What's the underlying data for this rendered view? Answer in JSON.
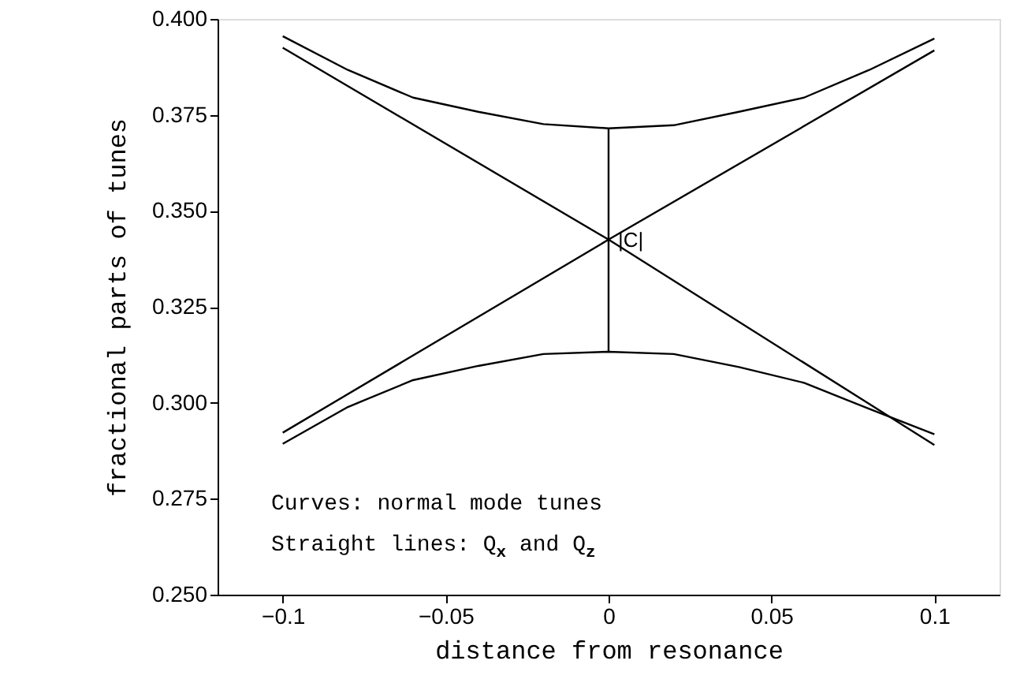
{
  "chart_data": {
    "type": "line",
    "xlabel": "distance from resonance",
    "ylabel": "fractional parts of tunes",
    "xlim": [
      -0.12,
      0.12
    ],
    "xticks": [
      -0.1,
      -0.05,
      0,
      0.05,
      0.1
    ],
    "ylim": [
      0.25,
      0.4
    ],
    "yticks": [
      {
        "value": 0.25,
        "label": "0.250"
      },
      {
        "value": 0.275,
        "label": "0.275"
      },
      {
        "value": 0.3,
        "label": "0.300"
      },
      {
        "value": 0.325,
        "label": "0.325"
      },
      {
        "value": 0.35,
        "label": "0.350"
      },
      {
        "value": 0.375,
        "label": "0.375"
      },
      {
        "value": 0.4,
        "label": "0.400"
      }
    ],
    "grid": false,
    "marker": "none",
    "line_style": "solid",
    "series": [
      {
        "color": "#000000",
        "x": [
          -0.1,
          -0.08,
          -0.06,
          -0.04,
          -0.02,
          0,
          0.02,
          0.04,
          0.06,
          0.08,
          0.1
        ],
        "values": [
          0.3955,
          0.3867,
          0.3795,
          0.3758,
          0.3726,
          0.3715,
          0.3723,
          0.3758,
          0.3795,
          0.3867,
          0.3949
        ]
      },
      {
        "color": "#000000",
        "x": [
          -0.1,
          -0.08,
          -0.06,
          -0.04,
          -0.02,
          0,
          0.02,
          0.04,
          0.06,
          0.08,
          0.1
        ],
        "values": [
          0.2893,
          0.2989,
          0.3059,
          0.3096,
          0.3127,
          0.3133,
          0.3127,
          0.3093,
          0.3052,
          0.2984,
          0.2918
        ]
      },
      {
        "color": "#000000",
        "x": [
          -0.1,
          0,
          0.1
        ],
        "values": [
          0.3925,
          0.3425,
          0.289
        ]
      },
      {
        "color": "#000000",
        "x": [
          -0.1,
          0,
          0.1
        ],
        "values": [
          0.2922,
          0.3425,
          0.3918
        ]
      },
      {
        "color": "#000000",
        "x": [
          0,
          0
        ],
        "values": [
          0.3133,
          0.3715
        ]
      }
    ],
    "annotations": [
      "|C|",
      "Curves: normal mode tunes",
      "Straight lines: Q$_{x}$ and Q$_{z}$"
    ]
  }
}
